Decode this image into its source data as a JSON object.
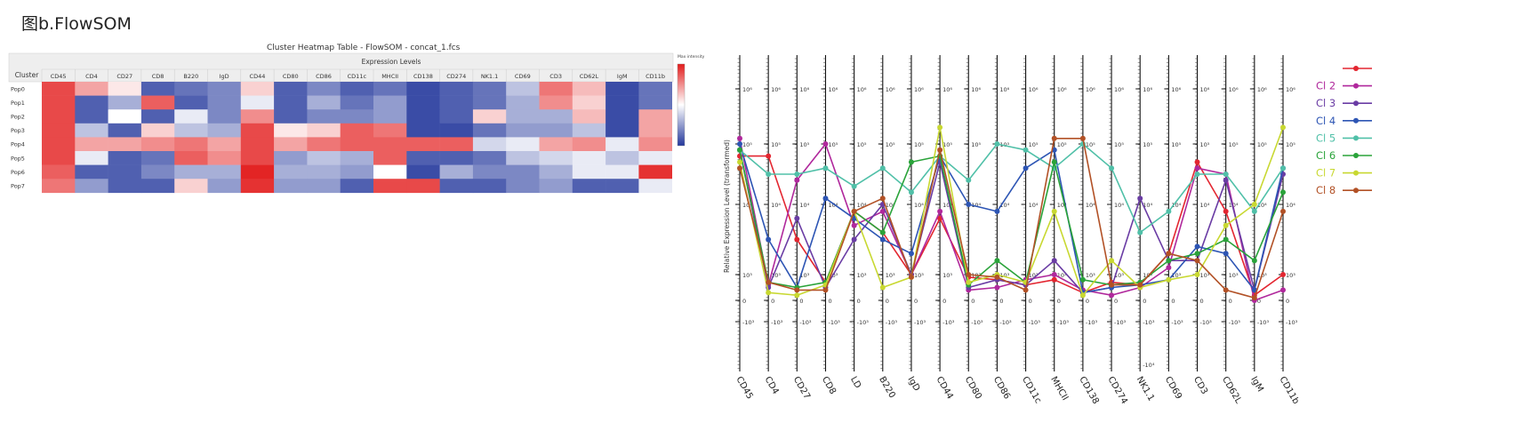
{
  "figure_title": "图b.FlowSOM",
  "heatmap": {
    "title": "Cluster Heatmap Table -  FlowSOM - concat_1.fcs",
    "cluster_header": "Cluster",
    "group_header": "Expression Levels",
    "legend_label": "Max intensity",
    "colors": {
      "low": "#24389c",
      "mid": "#ffffff",
      "high": "#e21b1b"
    }
  },
  "parallel": {
    "ylabel": "Relative Expression Level (transformed)",
    "tick_labels": [
      "10⁶",
      "10⁵",
      "10⁴",
      "10³",
      "0",
      "-10³",
      "-10⁴"
    ]
  },
  "chart_data": [
    {
      "type": "heatmap",
      "title": "Cluster Heatmap Table -  FlowSOM - concat_1.fcs",
      "columns": [
        "CD45",
        "CD4",
        "CD27",
        "CD8",
        "B220",
        "IgD",
        "CD44",
        "CD80",
        "CD86",
        "CD11c",
        "MHCII",
        "CD138",
        "CD274",
        "NK1.1",
        "CD69",
        "CD3",
        "CD62L",
        "IgM",
        "CD11b"
      ],
      "rows": [
        "Pop0",
        "Pop1",
        "Pop2",
        "Pop3",
        "Pop4",
        "Pop5",
        "Pop6",
        "Pop7"
      ],
      "values": [
        [
          0.9,
          0.7,
          0.55,
          0.1,
          0.15,
          0.2,
          0.6,
          0.1,
          0.2,
          0.1,
          0.15,
          0.05,
          0.1,
          0.15,
          0.35,
          0.8,
          0.65,
          0.05,
          0.15
        ],
        [
          0.9,
          0.1,
          0.3,
          0.85,
          0.1,
          0.2,
          0.45,
          0.1,
          0.3,
          0.15,
          0.25,
          0.05,
          0.1,
          0.15,
          0.3,
          0.75,
          0.6,
          0.05,
          0.15
        ],
        [
          0.9,
          0.1,
          0.5,
          0.1,
          0.45,
          0.2,
          0.75,
          0.1,
          0.2,
          0.2,
          0.25,
          0.05,
          0.1,
          0.6,
          0.3,
          0.3,
          0.65,
          0.05,
          0.7
        ],
        [
          0.9,
          0.35,
          0.1,
          0.6,
          0.35,
          0.3,
          0.9,
          0.55,
          0.6,
          0.85,
          0.8,
          0.05,
          0.05,
          0.15,
          0.25,
          0.25,
          0.35,
          0.05,
          0.7
        ],
        [
          0.9,
          0.7,
          0.7,
          0.75,
          0.8,
          0.7,
          0.9,
          0.7,
          0.8,
          0.85,
          0.85,
          0.85,
          0.85,
          0.4,
          0.45,
          0.7,
          0.75,
          0.45,
          0.75
        ],
        [
          0.9,
          0.45,
          0.1,
          0.15,
          0.85,
          0.75,
          0.9,
          0.25,
          0.35,
          0.3,
          0.85,
          0.1,
          0.1,
          0.15,
          0.35,
          0.4,
          0.45,
          0.35,
          0.45
        ],
        [
          0.85,
          0.1,
          0.1,
          0.2,
          0.3,
          0.3,
          0.98,
          0.3,
          0.3,
          0.25,
          0.5,
          0.05,
          0.3,
          0.2,
          0.2,
          0.3,
          0.45,
          0.45,
          0.95
        ],
        [
          0.8,
          0.25,
          0.1,
          0.1,
          0.6,
          0.25,
          0.95,
          0.25,
          0.25,
          0.1,
          0.9,
          0.9,
          0.1,
          0.1,
          0.2,
          0.25,
          0.1,
          0.1,
          0.45
        ]
      ]
    },
    {
      "type": "line",
      "axes": [
        "CD45",
        "CD4",
        "CD27",
        "CD8",
        "LD",
        "B220",
        "IgD",
        "CD44",
        "CD80",
        "CD86",
        "CD11c",
        "MHCII",
        "CD138",
        "CD274",
        "NK1.1",
        "CD69",
        "CD3",
        "CD62L",
        "IgM",
        "CD11b"
      ],
      "ylabel": "Relative Expression Level (transformed)",
      "yticks": [
        "10⁶",
        "10⁵",
        "10⁴",
        "10³",
        "0",
        "-10³",
        "-10⁴"
      ],
      "series": [
        {
          "name": "",
          "color": "#e32630",
          "values": [
            4.8,
            4.8,
            3.5,
            2.7,
            3.9,
            3.6,
            3.0,
            3.8,
            2.9,
            2.8,
            2.6,
            2.8,
            2.3,
            2.7,
            2.6,
            3.3,
            4.7,
            3.9,
            2.2,
            3.0
          ]
        },
        {
          "name": "Cl 2",
          "color": "#b0289c",
          "values": [
            5.1,
            2.6,
            4.4,
            5.0,
            3.7,
            3.9,
            3.0,
            3.9,
            2.4,
            2.5,
            2.8,
            3.0,
            2.4,
            2.2,
            2.5,
            3.1,
            4.6,
            4.5,
            2.0,
            2.4
          ]
        },
        {
          "name": "Cl 3",
          "color": "#6a3ca4",
          "values": [
            4.9,
            2.5,
            3.8,
            2.5,
            3.5,
            4.0,
            3.0,
            4.7,
            2.5,
            2.8,
            2.6,
            3.2,
            2.3,
            2.5,
            4.1,
            3.2,
            3.2,
            4.4,
            2.4,
            4.5
          ]
        },
        {
          "name": "Cl 4",
          "color": "#2d55b4",
          "values": [
            5.0,
            3.5,
            2.5,
            4.1,
            3.8,
            3.5,
            3.3,
            4.8,
            4.0,
            3.9,
            4.6,
            4.9,
            2.3,
            2.5,
            2.6,
            2.8,
            3.4,
            3.3,
            2.4,
            4.6
          ]
        },
        {
          "name": "Cl 5",
          "color": "#50c0a8",
          "values": [
            4.9,
            4.5,
            4.5,
            4.6,
            4.3,
            4.6,
            4.2,
            4.8,
            4.4,
            5.0,
            4.9,
            4.6,
            5.0,
            4.6,
            3.6,
            3.9,
            4.5,
            4.5,
            3.9,
            4.6
          ]
        },
        {
          "name": "Cl 6",
          "color": "#2aa33a",
          "values": [
            4.9,
            2.7,
            2.5,
            2.7,
            3.9,
            3.6,
            4.7,
            4.8,
            2.6,
            3.2,
            2.7,
            4.7,
            2.8,
            2.6,
            2.7,
            3.2,
            3.3,
            3.5,
            3.2,
            4.2
          ]
        },
        {
          "name": "Cl 7",
          "color": "#c8d831",
          "values": [
            4.7,
            2.3,
            2.2,
            2.6,
            3.9,
            2.5,
            2.9,
            5.3,
            2.7,
            3.0,
            2.7,
            3.9,
            2.2,
            3.2,
            2.5,
            2.8,
            3.0,
            3.7,
            4.0,
            5.3
          ]
        },
        {
          "name": "Cl 8",
          "color": "#b25126",
          "values": [
            4.6,
            2.7,
            2.4,
            2.4,
            3.9,
            4.1,
            2.9,
            4.9,
            3.0,
            2.9,
            2.4,
            5.1,
            5.1,
            2.6,
            2.6,
            3.3,
            3.2,
            2.4,
            2.1,
            3.9
          ]
        }
      ]
    }
  ]
}
